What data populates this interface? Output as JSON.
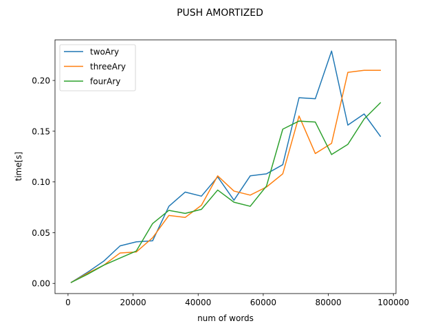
{
  "chart_data": {
    "type": "line",
    "title": "PUSH AMORTIZED",
    "xlabel": "num of words",
    "ylabel": "time[s]",
    "xlim": [
      -4000,
      100800
    ],
    "ylim": [
      -0.01,
      0.24
    ],
    "xticks": [
      0,
      20000,
      40000,
      60000,
      80000,
      100000
    ],
    "xtick_labels": [
      "0",
      "20000",
      "40000",
      "60000",
      "80000",
      "100000"
    ],
    "yticks": [
      0.0,
      0.05,
      0.1,
      0.15,
      0.2
    ],
    "ytick_labels": [
      "0.00",
      "0.05",
      "0.10",
      "0.15",
      "0.20"
    ],
    "legend_position": "top-left",
    "x": [
      1000,
      6000,
      11000,
      16000,
      21000,
      26000,
      31000,
      36000,
      41000,
      46000,
      51000,
      56000,
      61000,
      66000,
      71000,
      76000,
      81000,
      86000,
      91000,
      96000
    ],
    "series": [
      {
        "name": "twoAry",
        "color": "#1f77b4",
        "values": [
          0.001,
          0.011,
          0.022,
          0.037,
          0.041,
          0.042,
          0.076,
          0.09,
          0.086,
          0.105,
          0.082,
          0.106,
          0.108,
          0.117,
          0.183,
          0.182,
          0.229,
          0.156,
          0.167,
          0.145
        ]
      },
      {
        "name": "threeAry",
        "color": "#ff7f0e",
        "values": [
          0.001,
          0.01,
          0.018,
          0.03,
          0.031,
          0.045,
          0.067,
          0.065,
          0.077,
          0.106,
          0.091,
          0.087,
          0.095,
          0.108,
          0.165,
          0.128,
          0.138,
          0.208,
          0.21,
          0.21
        ]
      },
      {
        "name": "fourAry",
        "color": "#2ca02c",
        "values": [
          0.001,
          0.009,
          0.018,
          0.025,
          0.032,
          0.059,
          0.072,
          0.069,
          0.073,
          0.092,
          0.08,
          0.076,
          0.096,
          0.152,
          0.16,
          0.159,
          0.127,
          0.137,
          0.162,
          0.178
        ]
      }
    ]
  }
}
